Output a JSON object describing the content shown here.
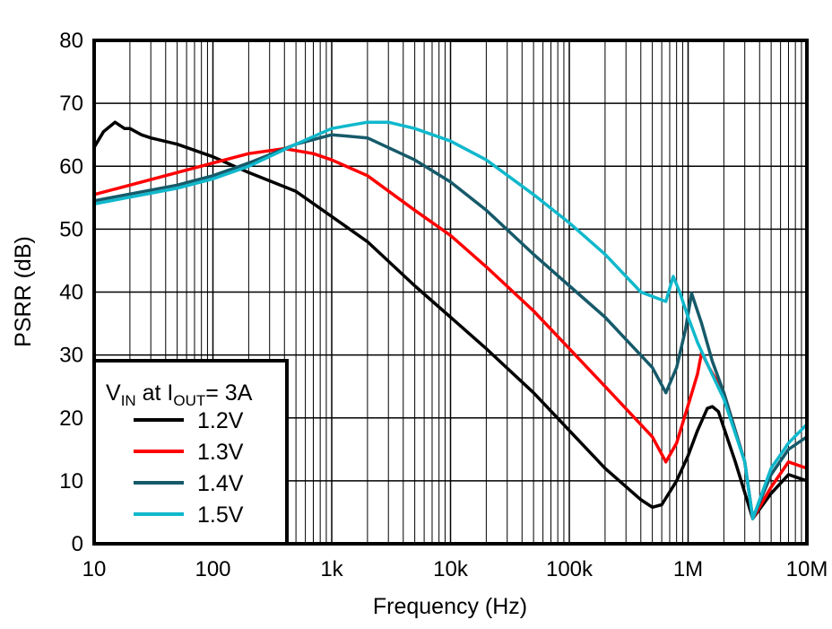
{
  "chart_data": {
    "type": "line",
    "title": "",
    "xlabel": "Frequency (Hz)",
    "ylabel": "PSRR (dB)",
    "xscale": "log",
    "xlim": [
      10,
      10000000
    ],
    "ylim": [
      0,
      80
    ],
    "grid": true,
    "x_tick_labels": [
      "10",
      "100",
      "1k",
      "10k",
      "100k",
      "1M",
      "10M"
    ],
    "x_tick_values": [
      10,
      100,
      1000,
      10000,
      100000,
      1000000,
      10000000
    ],
    "y_ticks": [
      0,
      10,
      20,
      30,
      40,
      50,
      60,
      70,
      80
    ],
    "legend": {
      "title_main": "V",
      "title_sub1": "IN",
      "title_mid": " at I",
      "title_sub2": "OUT",
      "title_end": "= 3A",
      "placement": "bottom-left"
    },
    "series": [
      {
        "name": "1.2V",
        "color": "#000000",
        "x": [
          10,
          12,
          15,
          18,
          20,
          25,
          30,
          50,
          100,
          200,
          500,
          1000,
          2000,
          5000,
          10000,
          20000,
          50000,
          100000,
          200000,
          400000,
          500000,
          600000,
          800000,
          1000000,
          1200000,
          1450000,
          1600000,
          1800000,
          2500000,
          3500000,
          5000000,
          7000000,
          10000000
        ],
        "y": [
          63,
          65.5,
          67,
          66,
          66,
          65,
          64.5,
          63.5,
          61.5,
          59,
          56,
          52,
          48,
          41,
          36,
          31,
          24,
          18,
          12,
          7,
          5.8,
          6.2,
          10,
          14,
          18,
          21.5,
          21.8,
          21,
          13,
          4,
          8,
          11,
          10
        ]
      },
      {
        "name": "1.3V",
        "color": "#ff0000",
        "x": [
          10,
          20,
          50,
          100,
          200,
          400,
          700,
          1000,
          2000,
          5000,
          10000,
          20000,
          50000,
          100000,
          200000,
          500000,
          650000,
          800000,
          1000000,
          1200000,
          1300000,
          1500000,
          2000000,
          3000000,
          3500000,
          5000000,
          7000000,
          10000000
        ],
        "y": [
          55.5,
          57,
          59,
          60.5,
          62,
          62.8,
          62,
          61,
          58.5,
          53,
          49,
          44,
          37,
          31,
          25,
          17,
          13,
          16,
          22,
          27,
          30.4,
          28,
          24,
          13,
          4,
          9,
          13,
          12
        ]
      },
      {
        "name": "1.4V",
        "color": "#165a6a",
        "x": [
          10,
          50,
          100,
          200,
          500,
          1000,
          2000,
          5000,
          10000,
          20000,
          50000,
          100000,
          200000,
          500000,
          650000,
          800000,
          950000,
          1070000,
          1300000,
          1600000,
          2000000,
          3000000,
          3500000,
          5000000,
          7000000,
          10000000
        ],
        "y": [
          54.5,
          57,
          58.5,
          60.5,
          63.5,
          65,
          64.5,
          61,
          57.5,
          53,
          46,
          41,
          36,
          28,
          24,
          28,
          34,
          39.8,
          35,
          29,
          24,
          13,
          4,
          11,
          15,
          17
        ]
      },
      {
        "name": "1.5V",
        "color": "#10b8cc",
        "x": [
          10,
          50,
          100,
          200,
          500,
          1000,
          2000,
          3000,
          5000,
          10000,
          20000,
          50000,
          100000,
          200000,
          400000,
          650000,
          750000,
          850000,
          1000000,
          1200000,
          1500000,
          2000000,
          3000000,
          3500000,
          5000000,
          7000000,
          10000000
        ],
        "y": [
          54,
          56.5,
          58,
          60,
          63.5,
          66,
          67,
          67,
          66,
          64,
          61,
          55.5,
          51,
          46,
          40,
          38.5,
          42.5,
          40,
          36,
          32,
          28,
          23,
          13,
          4,
          12,
          16,
          19
        ]
      }
    ]
  }
}
